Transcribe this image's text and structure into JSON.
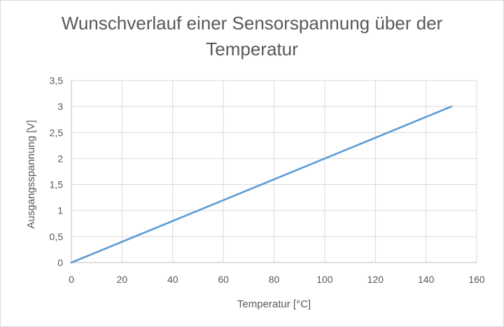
{
  "chart_data": {
    "type": "line",
    "title_lines": [
      "Wunschverlauf einer Sensorspannung über der",
      "Temperatur"
    ],
    "xlabel": "Temperatur [°C]",
    "ylabel": "Ausgangsspannung [V]",
    "xlim": [
      0,
      160
    ],
    "ylim": [
      0,
      3.5
    ],
    "x_ticks": [
      "0",
      "20",
      "40",
      "60",
      "80",
      "100",
      "120",
      "140",
      "160"
    ],
    "y_ticks": [
      "0",
      "0,5",
      "1",
      "1,5",
      "2",
      "2,5",
      "3",
      "3,5"
    ],
    "grid": true,
    "legend": "none",
    "series": [
      {
        "color": "#5b9bd5",
        "x": [
          0,
          150
        ],
        "y": [
          0,
          3
        ]
      }
    ]
  }
}
